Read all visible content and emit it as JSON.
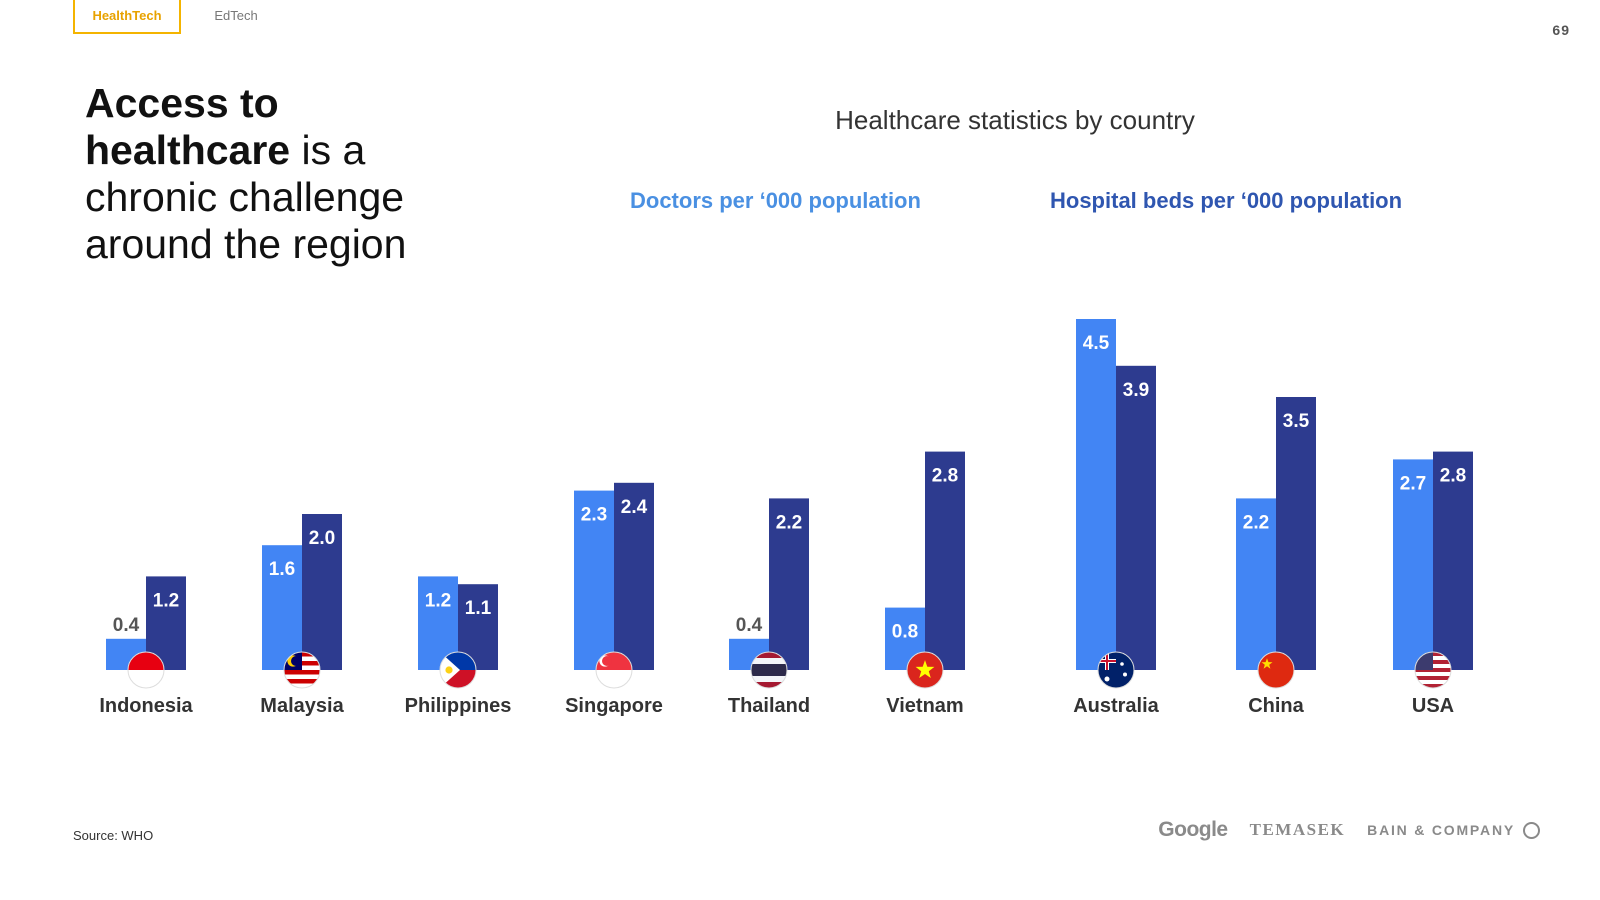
{
  "tabs": {
    "active": "HealthTech",
    "inactive": "EdTech"
  },
  "page_number": "69",
  "headline": {
    "bold_part_1": "Access to",
    "bold_part_2": "healthcare",
    "rest_1": " is a",
    "rest_2": "chronic challenge",
    "rest_3": "around the region"
  },
  "source": "Source: WHO",
  "logos": {
    "google": "Google",
    "temasek": "TEMASEK",
    "bain": "BAIN & COMPANY"
  },
  "colors": {
    "doctors": "#4285f4",
    "beds": "#2d3b8f",
    "doctors_legend": "#4a90e2",
    "beds_legend": "#2f56b0"
  },
  "chart_data": {
    "type": "bar",
    "title": "Healthcare statistics by country",
    "categories": [
      "Indonesia",
      "Malaysia",
      "Philippines",
      "Singapore",
      "Thailand",
      "Vietnam",
      "Australia",
      "China",
      "USA"
    ],
    "series": [
      {
        "name": "Doctors per ‘000 population",
        "values": [
          0.4,
          1.6,
          1.2,
          2.3,
          0.4,
          0.8,
          4.5,
          2.2,
          2.7
        ]
      },
      {
        "name": "Hospital beds per ‘000 population",
        "values": [
          1.2,
          2.0,
          1.1,
          2.4,
          2.2,
          2.8,
          3.9,
          3.5,
          2.8
        ]
      }
    ],
    "value_labels": {
      "doctors": [
        "0.4",
        "1.6",
        "1.2",
        "2.3",
        "0.4",
        "0.8",
        "4.5",
        "2.2",
        "2.7"
      ],
      "beds": [
        "1.2",
        "2.0",
        "1.1",
        "2.4",
        "2.2",
        "2.8",
        "3.9",
        "3.5",
        "2.8"
      ]
    },
    "flags": [
      "indonesia-flag-icon",
      "malaysia-flag-icon",
      "philippines-flag-icon",
      "singapore-flag-icon",
      "thailand-flag-icon",
      "vietnam-flag-icon",
      "australia-flag-icon",
      "china-flag-icon",
      "usa-flag-icon"
    ],
    "grid": false,
    "legend": "top"
  }
}
